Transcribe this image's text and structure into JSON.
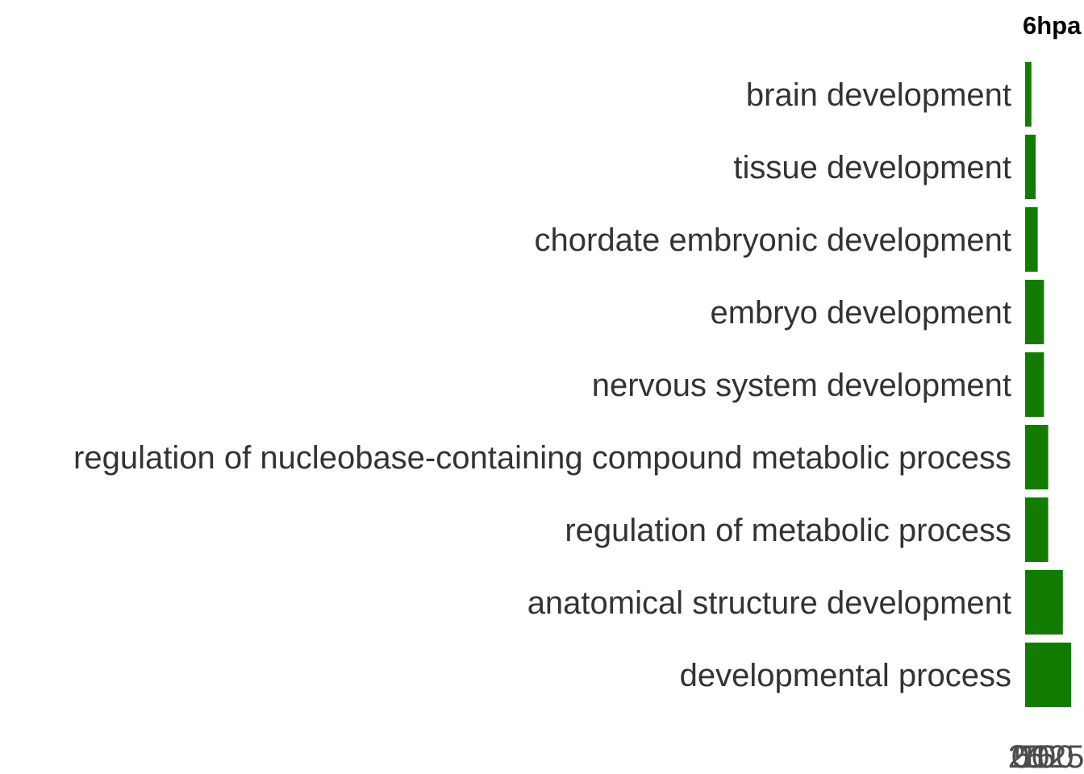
{
  "chart_data": {
    "type": "bar",
    "orientation": "horizontal",
    "title": "6hpa",
    "xlabel": "",
    "ylabel": "",
    "categories": [
      "brain development",
      "tissue development",
      "chordate embryonic development",
      "embryo development",
      "nervous system development",
      "regulation of nucleobase-containing compound metabolic process",
      "regulation of metabolic process",
      "anatomical structure development",
      "developmental process"
    ],
    "values": [
      3,
      5,
      6,
      9,
      9,
      11,
      11,
      18,
      22
    ],
    "xlim": [
      0,
      30
    ],
    "x_ticks": [
      "0",
      "25",
      "50",
      "75",
      "100",
      "125"
    ],
    "grid": false,
    "legend": "none",
    "colors": {
      "bar": "#117c00",
      "category_text": "#333333",
      "tick_text": "#4d4d4d",
      "title_text": "#000000"
    }
  }
}
